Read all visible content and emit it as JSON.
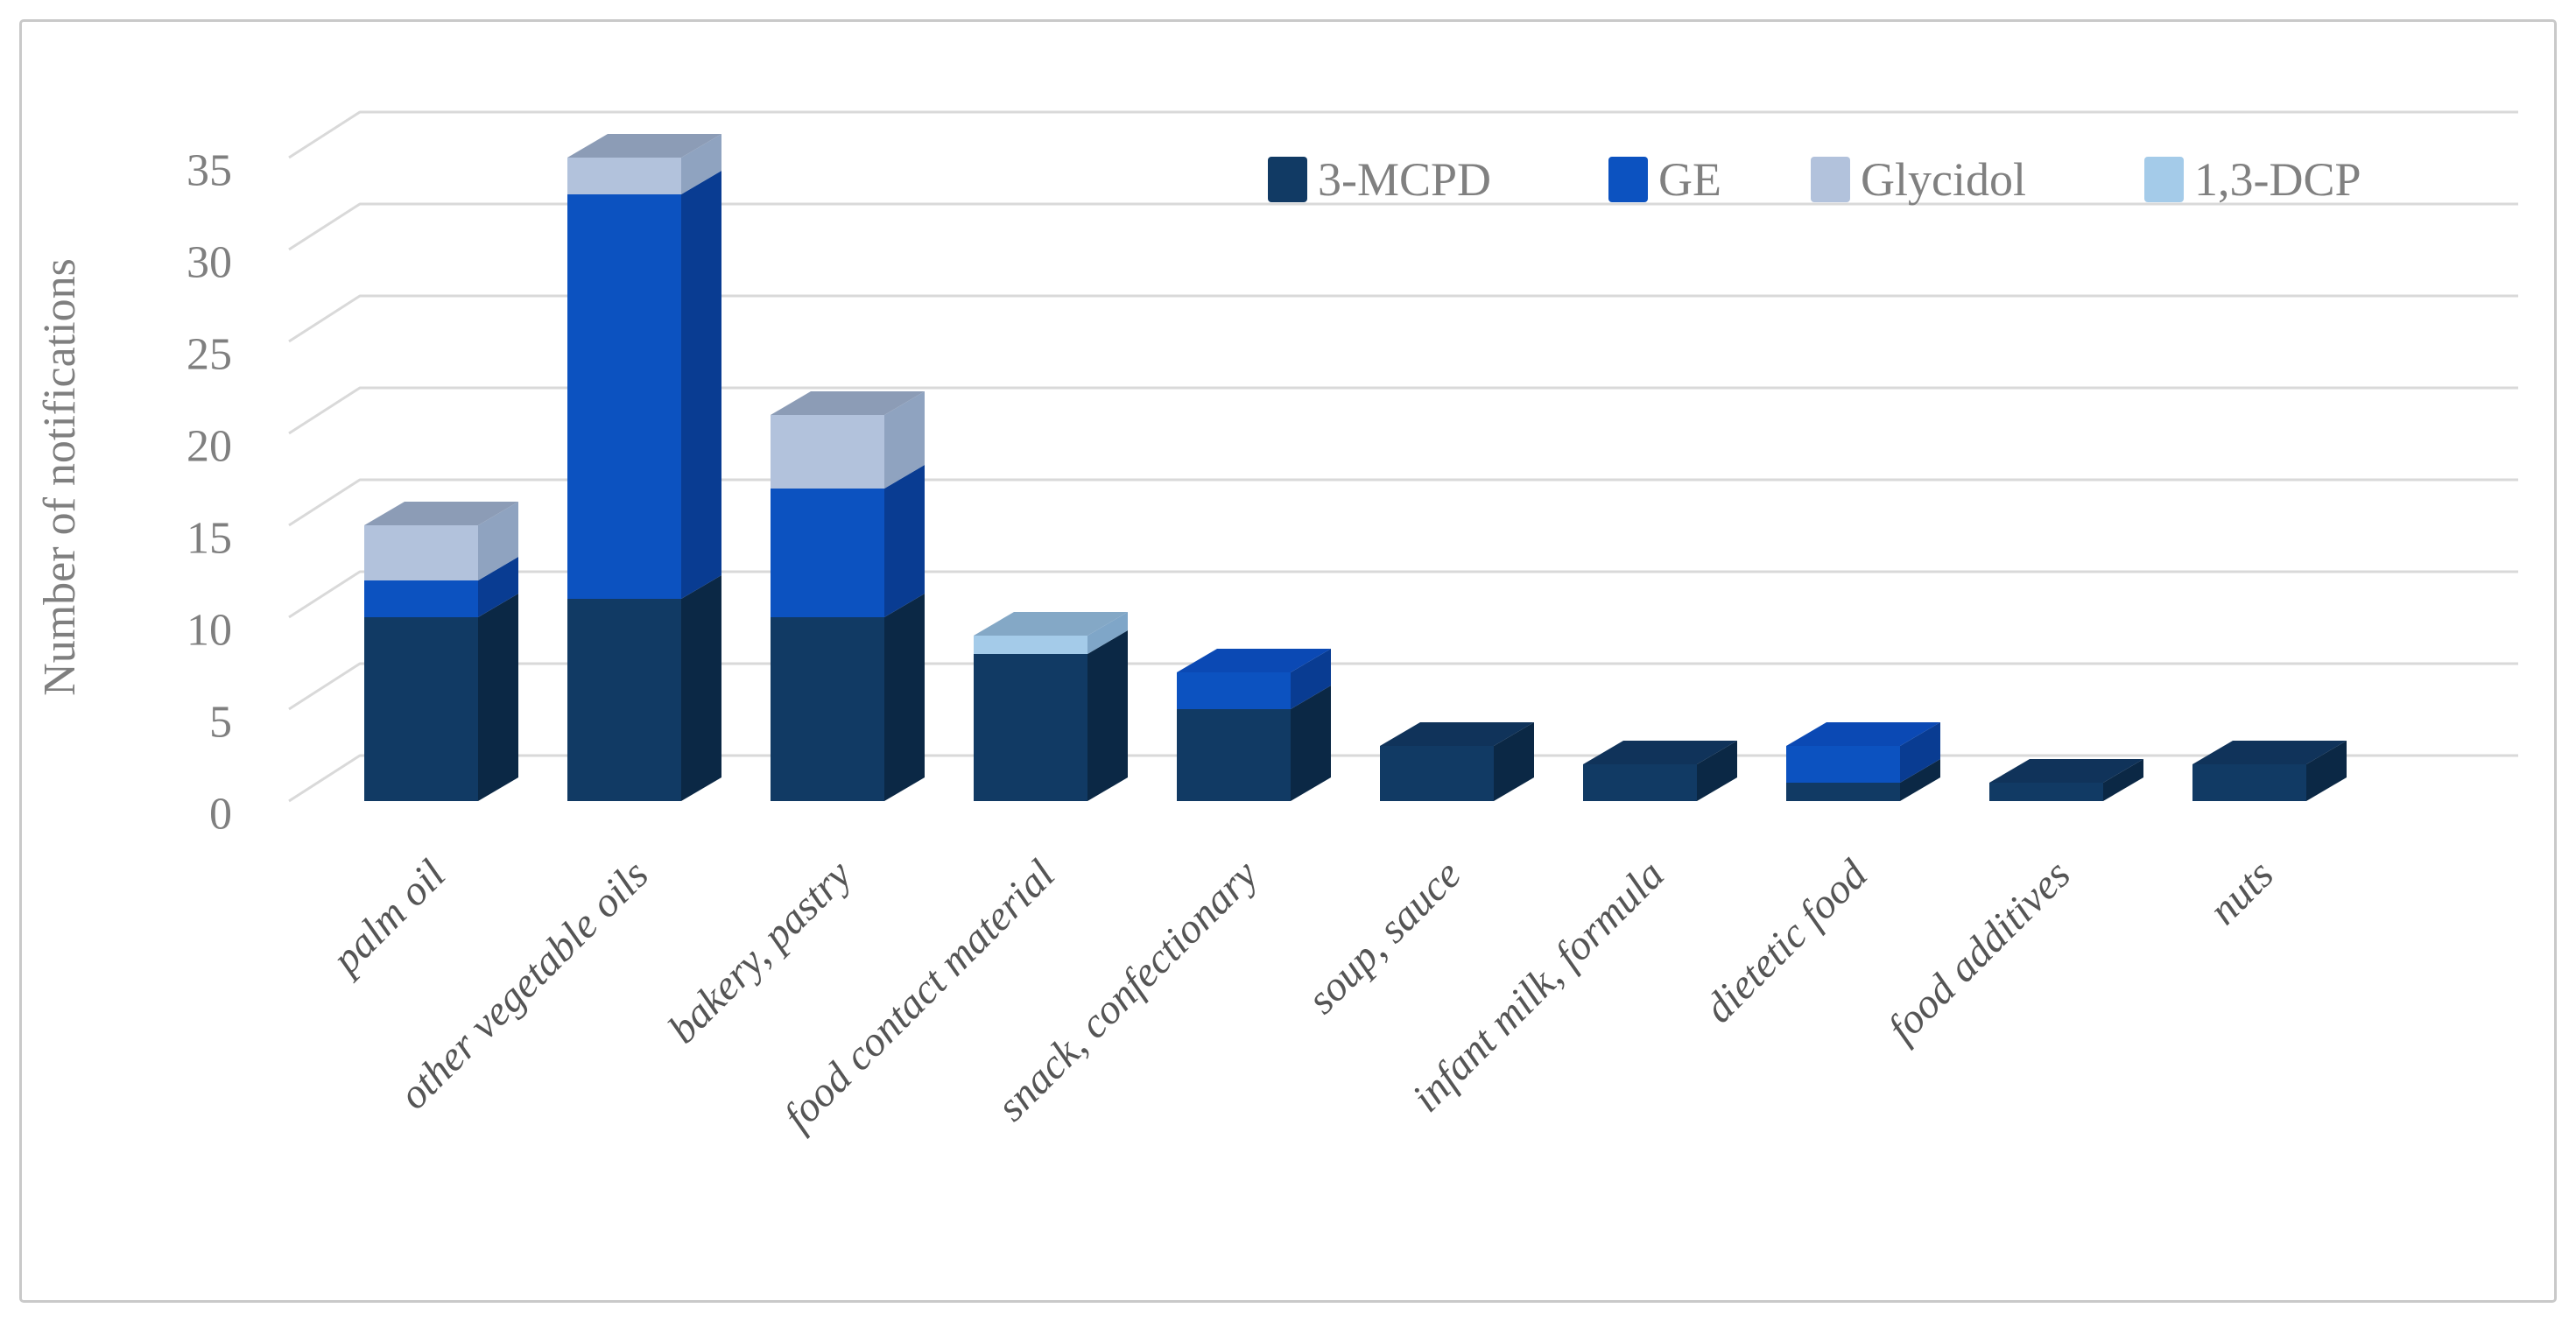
{
  "figure": {
    "background": "#ffffff",
    "border_color": "#c9c9c9"
  },
  "style": {
    "grid_color": "#d9d9d9",
    "tick_color": "#7f7f7f",
    "category_color": "#555555",
    "legend_color": "#808080",
    "title_color": "#7f7f7f"
  },
  "chart_data": {
    "type": "bar",
    "variant": "3d-stacked-column",
    "title": "",
    "xlabel": "",
    "ylabel": "Number of notifications",
    "ylim": [
      0,
      35
    ],
    "yticks": [
      0,
      5,
      10,
      15,
      20,
      25,
      30,
      35
    ],
    "grid": true,
    "legend_position": "top-right",
    "categories": [
      "palm oil",
      "other vegetable oils",
      "bakery, pastry",
      "food contact material",
      "snack, confectionary",
      "soup, sauce",
      "infant milk, formula",
      "dietetic food",
      "food additives",
      "nuts"
    ],
    "series": [
      {
        "name": "3-MCPD",
        "color": "#113a64",
        "side_color": "#0b2845",
        "top_color": "#10335a",
        "values": [
          10,
          11,
          10,
          8,
          5,
          3,
          2,
          1,
          1,
          2
        ]
      },
      {
        "name": "GE",
        "color": "#0c52c0",
        "side_color": "#093c92",
        "top_color": "#0b49b4",
        "values": [
          2,
          22,
          7,
          0,
          2,
          0,
          0,
          2,
          0,
          0
        ]
      },
      {
        "name": "Glycidol",
        "color": "#b2c2dc",
        "side_color": "#8fa3c0",
        "top_color": "#8c9cb6",
        "values": [
          3,
          2,
          4,
          0,
          0,
          0,
          0,
          0,
          0,
          0
        ]
      },
      {
        "name": "1,3-DCP",
        "color": "#a4cbe9",
        "side_color": "#7fa6c8",
        "top_color": "#84a8c6",
        "values": [
          0,
          0,
          0,
          1,
          0,
          0,
          0,
          0,
          0,
          0
        ]
      }
    ]
  }
}
